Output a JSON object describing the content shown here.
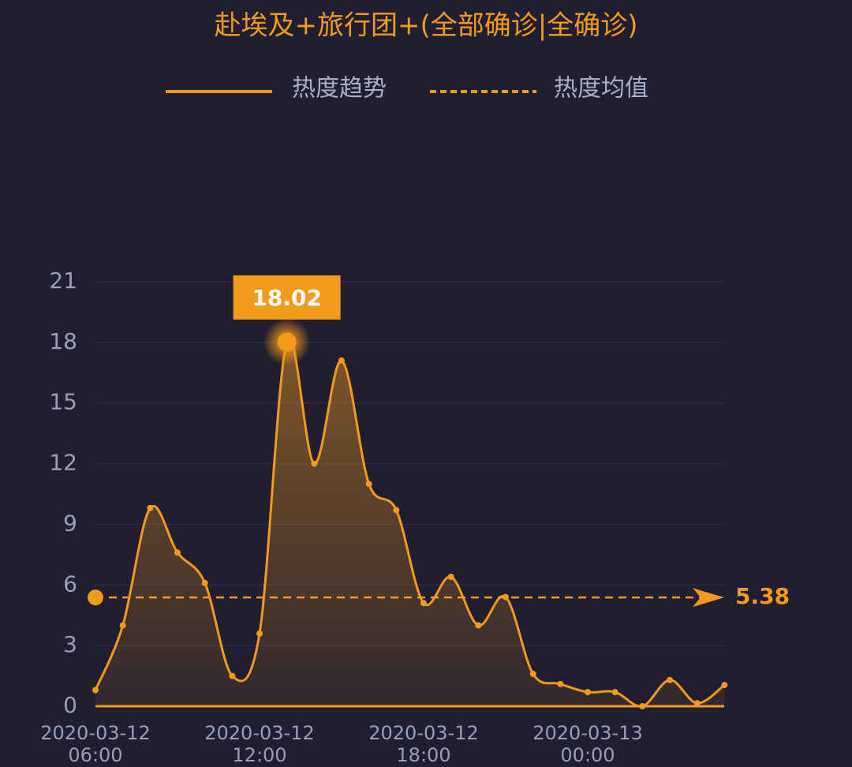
{
  "chart_data": {
    "type": "line",
    "title": "赴埃及+旅行团+(全部确诊|全确诊)",
    "categories": [
      "2020-03-12 06:00",
      null,
      null,
      null,
      null,
      null,
      "2020-03-12 12:00",
      null,
      null,
      null,
      null,
      null,
      "2020-03-12 18:00",
      null,
      null,
      null,
      null,
      null,
      "2020-03-13 00:00",
      null,
      null,
      null,
      null,
      null
    ],
    "series": [
      {
        "name": "热度趋势",
        "color": "#f29a1c",
        "values": [
          0.8,
          4.0,
          9.8,
          7.6,
          6.1,
          1.5,
          3.6,
          18.02,
          12.0,
          17.1,
          11.0,
          9.7,
          5.1,
          6.4,
          4.0,
          5.4,
          1.6,
          1.1,
          0.7,
          0.7,
          0.0,
          1.3,
          0.15,
          1.05
        ]
      }
    ],
    "highlight": {
      "index": 7,
      "label": "18.02"
    },
    "mean": {
      "name": "热度均值",
      "value": 5.38,
      "label": "5.38"
    },
    "ylim": [
      0,
      21
    ],
    "yticks": [
      0,
      3,
      6,
      9,
      12,
      15,
      18,
      21
    ],
    "grid": true
  }
}
